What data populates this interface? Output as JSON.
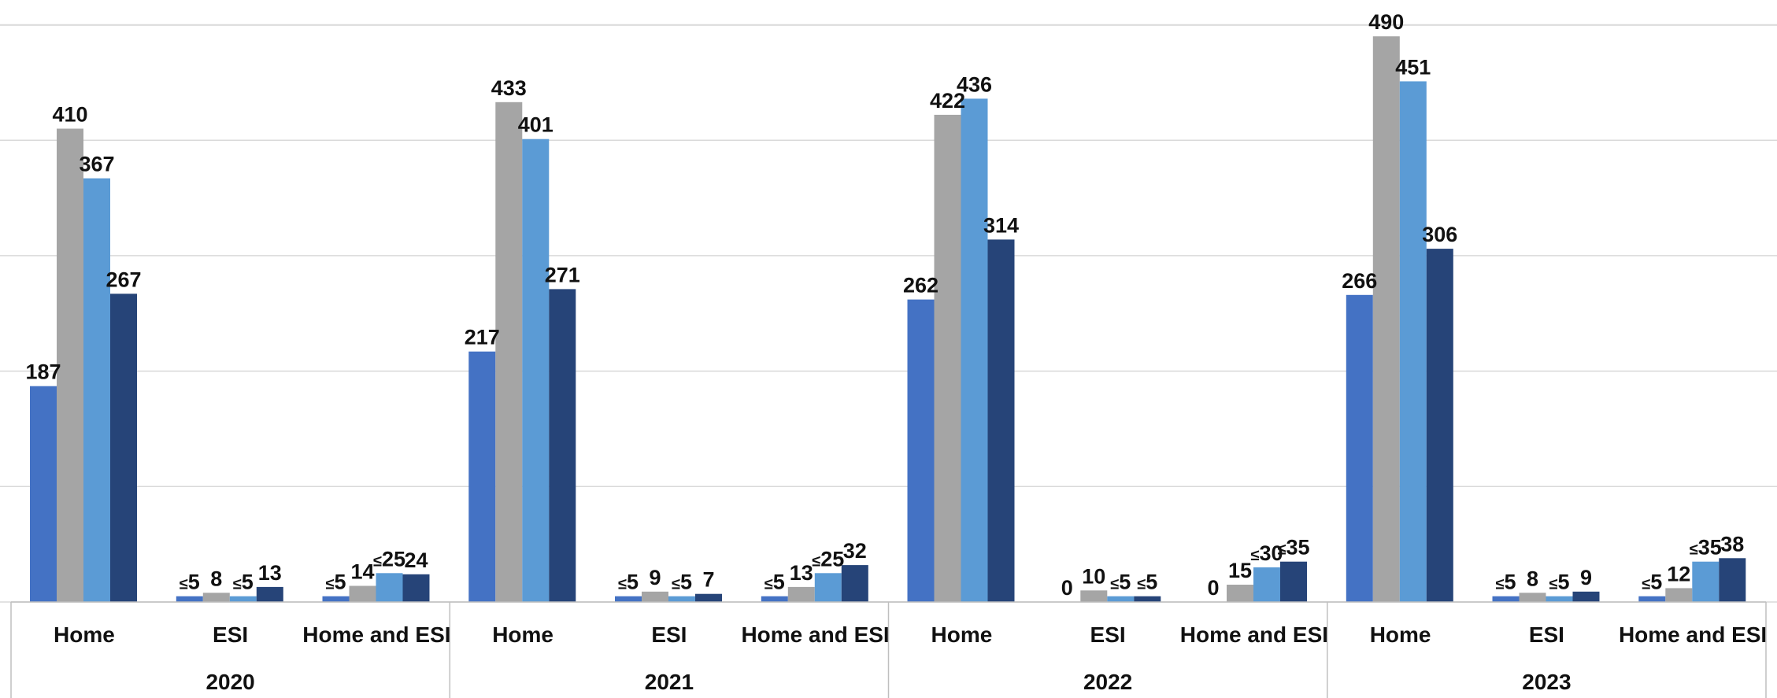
{
  "chart_data": {
    "type": "bar",
    "title": "",
    "xlabel": "",
    "ylabel": "",
    "ylim": [
      0,
      500
    ],
    "grid": true,
    "legend": "none",
    "groups": [
      "2020",
      "2021",
      "2022",
      "2023"
    ],
    "categories": [
      "Home",
      "ESI",
      "Home and ESI"
    ],
    "colors": [
      "#4472c4",
      "#a5a5a5",
      "#5b9bd5",
      "#264478"
    ],
    "data": [
      {
        "year": "2020",
        "category": "Home",
        "values": [
          187,
          410,
          367,
          267
        ],
        "labels": [
          "187",
          "410",
          "367",
          "267"
        ]
      },
      {
        "year": "2020",
        "category": "ESI",
        "values": [
          5,
          8,
          5,
          13
        ],
        "labels": [
          "≤5",
          "8",
          "≤5",
          "13"
        ]
      },
      {
        "year": "2020",
        "category": "Home and ESI",
        "values": [
          5,
          14,
          25,
          24
        ],
        "labels": [
          "≤5",
          "14",
          "≤25",
          "24"
        ]
      },
      {
        "year": "2021",
        "category": "Home",
        "values": [
          217,
          433,
          401,
          271
        ],
        "labels": [
          "217",
          "433",
          "401",
          "271"
        ]
      },
      {
        "year": "2021",
        "category": "ESI",
        "values": [
          5,
          9,
          5,
          7
        ],
        "labels": [
          "≤5",
          "9",
          "≤5",
          "7"
        ]
      },
      {
        "year": "2021",
        "category": "Home and ESI",
        "values": [
          5,
          13,
          25,
          32
        ],
        "labels": [
          "≤5",
          "13",
          "≤25",
          "32"
        ]
      },
      {
        "year": "2022",
        "category": "Home",
        "values": [
          262,
          422,
          436,
          314
        ],
        "labels": [
          "262",
          "422",
          "436",
          "314"
        ]
      },
      {
        "year": "2022",
        "category": "ESI",
        "values": [
          0,
          10,
          5,
          5
        ],
        "labels": [
          "0",
          "10",
          "≤5",
          "≤5"
        ]
      },
      {
        "year": "2022",
        "category": "Home and ESI",
        "values": [
          0,
          15,
          30,
          35
        ],
        "labels": [
          "0",
          "15",
          "≤30",
          "≤35"
        ]
      },
      {
        "year": "2023",
        "category": "Home",
        "values": [
          266,
          490,
          451,
          306
        ],
        "labels": [
          "266",
          "490",
          "451",
          "306"
        ]
      },
      {
        "year": "2023",
        "category": "ESI",
        "values": [
          5,
          8,
          5,
          9
        ],
        "labels": [
          "≤5",
          "8",
          "≤5",
          "9"
        ]
      },
      {
        "year": "2023",
        "category": "Home and ESI",
        "values": [
          5,
          12,
          35,
          38
        ],
        "labels": [
          "≤5",
          "12",
          "≤35",
          "38"
        ]
      }
    ]
  }
}
